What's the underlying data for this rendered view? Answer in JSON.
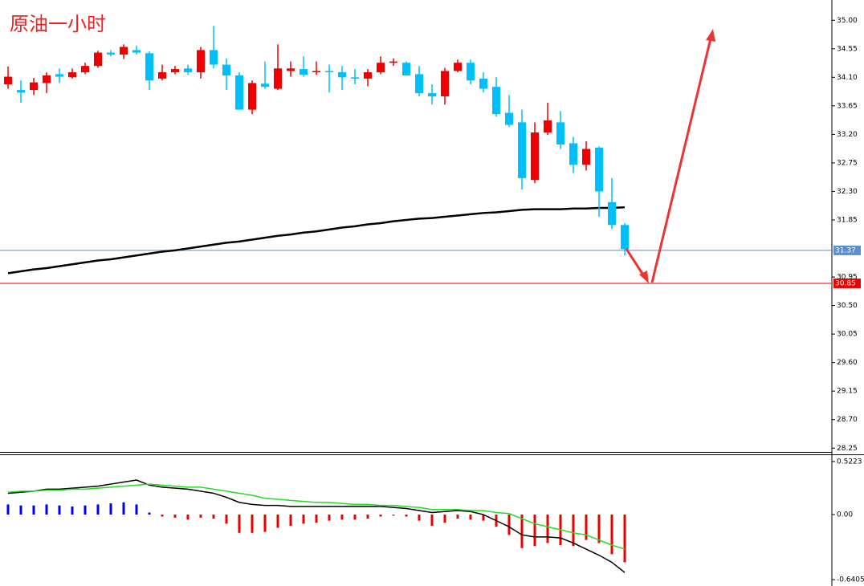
{
  "chart_data": [
    {
      "type": "candlestick",
      "title": "原油一小时",
      "open": [
        33.99,
        33.9,
        33.9,
        34.01,
        34.15,
        34.1,
        34.18,
        34.28,
        34.49,
        34.46,
        34.53,
        34.48,
        34.08,
        34.18,
        34.24,
        34.18,
        34.53,
        34.3,
        34.13,
        33.59,
        34.0,
        33.92,
        34.2,
        34.23,
        34.18,
        34.2,
        34.18,
        34.1,
        34.08,
        34.18,
        34.33,
        34.33,
        34.15,
        33.85,
        33.8,
        34.2,
        34.33,
        34.08,
        33.95,
        33.54,
        33.39,
        32.48,
        33.23,
        33.39,
        33.06,
        32.72,
        32.99,
        32.13,
        31.77
      ],
      "high": [
        34.27,
        34.05,
        34.09,
        34.18,
        34.24,
        34.24,
        34.33,
        34.52,
        34.53,
        34.62,
        34.6,
        34.51,
        34.3,
        34.28,
        34.3,
        34.58,
        34.91,
        34.4,
        34.18,
        34.05,
        34.35,
        34.62,
        34.35,
        34.43,
        34.35,
        34.3,
        34.28,
        34.23,
        34.23,
        34.43,
        34.4,
        34.35,
        34.28,
        33.99,
        34.25,
        34.38,
        34.38,
        34.18,
        34.1,
        33.82,
        33.59,
        33.39,
        33.7,
        33.57,
        33.16,
        33.09,
        33.01,
        32.51,
        31.8
      ],
      "low": [
        33.92,
        33.7,
        33.82,
        33.85,
        34.01,
        34.08,
        34.15,
        34.25,
        34.43,
        34.39,
        34.46,
        33.9,
        34.05,
        34.15,
        34.14,
        34.08,
        34.24,
        33.9,
        33.59,
        33.52,
        33.92,
        33.9,
        34.11,
        34.11,
        34.14,
        33.86,
        33.9,
        33.99,
        33.96,
        34.15,
        34.28,
        34.13,
        33.8,
        33.67,
        33.67,
        34.18,
        33.99,
        33.86,
        33.48,
        33.32,
        32.33,
        32.43,
        33.19,
        32.97,
        32.59,
        32.63,
        31.9,
        31.71,
        31.29
      ],
      "close": [
        34.11,
        33.86,
        34.02,
        34.13,
        34.11,
        34.18,
        34.28,
        34.49,
        34.46,
        34.58,
        34.49,
        34.05,
        34.18,
        34.23,
        34.18,
        34.53,
        34.3,
        34.13,
        33.59,
        34.01,
        33.95,
        34.24,
        34.24,
        34.14,
        34.2,
        34.18,
        34.1,
        34.08,
        34.18,
        34.33,
        34.35,
        34.13,
        33.85,
        33.8,
        34.2,
        34.33,
        34.05,
        33.92,
        33.52,
        33.35,
        32.51,
        33.23,
        33.42,
        33.04,
        32.72,
        32.97,
        32.3,
        31.77,
        31.39
      ],
      "up_color": "#ee0000",
      "down_color": "#00bfff",
      "overlays": [
        {
          "color": "#000000",
          "values": [
            31.01,
            31.04,
            31.07,
            31.09,
            31.12,
            31.15,
            31.18,
            31.21,
            31.23,
            31.26,
            31.29,
            31.32,
            31.35,
            31.37,
            31.4,
            31.43,
            31.46,
            31.49,
            31.51,
            31.54,
            31.57,
            31.6,
            31.62,
            31.65,
            31.67,
            31.7,
            31.73,
            31.75,
            31.78,
            31.8,
            31.83,
            31.85,
            31.87,
            31.88,
            31.9,
            31.92,
            31.94,
            31.96,
            31.97,
            31.99,
            32.01,
            32.02,
            32.02,
            32.02,
            32.03,
            32.03,
            32.04,
            32.04,
            32.05
          ]
        }
      ],
      "hlines": [
        {
          "value": 31.37,
          "color": "#5b8fd0"
        },
        {
          "value": 30.85,
          "color": "#ee0000"
        }
      ],
      "ylim": [
        28.19,
        35.32
      ],
      "yticks": [
        {
          "value": 35,
          "label": "35.00"
        },
        34.55,
        {
          "value": 34.1,
          "label": "34.10"
        },
        33.65,
        {
          "value": 33.2,
          "label": "33.20"
        },
        32.75,
        {
          "value": 32.3,
          "label": "32.30"
        },
        31.85,
        30.95,
        {
          "value": 30.5,
          "label": "30.50"
        },
        30.05,
        {
          "value": 29.6,
          "label": "29.60"
        },
        29.15,
        {
          "value": 28.7,
          "label": "28.70"
        },
        28.25
      ]
    },
    {
      "type": "macd",
      "histogram": [
        0.1,
        0.09,
        0.09,
        0.1,
        0.09,
        0.08,
        0.09,
        0.1,
        0.11,
        0.12,
        0.1,
        0.02,
        -0.02,
        -0.03,
        -0.05,
        -0.03,
        -0.04,
        -0.09,
        -0.18,
        -0.18,
        -0.17,
        -0.13,
        -0.11,
        -0.09,
        -0.08,
        -0.06,
        -0.05,
        -0.05,
        -0.04,
        -0.02,
        -0.01,
        -0.02,
        -0.06,
        -0.11,
        -0.08,
        -0.04,
        -0.05,
        -0.06,
        -0.12,
        -0.2,
        -0.33,
        -0.31,
        -0.28,
        -0.3,
        -0.31,
        -0.25,
        -0.28,
        -0.39,
        -0.47
      ],
      "pos_color": "#0000ee",
      "neg_color": "#ee0000",
      "series": [
        {
          "color": "#000000",
          "values": [
            0.21,
            0.22,
            0.23,
            0.25,
            0.25,
            0.26,
            0.27,
            0.28,
            0.3,
            0.32,
            0.34,
            0.29,
            0.27,
            0.26,
            0.25,
            0.23,
            0.21,
            0.17,
            0.12,
            0.1,
            0.09,
            0.09,
            0.08,
            0.08,
            0.08,
            0.08,
            0.08,
            0.08,
            0.08,
            0.08,
            0.07,
            0.06,
            0.04,
            0.02,
            0.03,
            0.04,
            0.03,
            0.0,
            -0.06,
            -0.12,
            -0.2,
            -0.22,
            -0.22,
            -0.23,
            -0.28,
            -0.34,
            -0.4,
            -0.47,
            -0.57
          ]
        },
        {
          "color": "#22dd22",
          "values": [
            0.22,
            0.23,
            0.23,
            0.24,
            0.24,
            0.25,
            0.25,
            0.26,
            0.27,
            0.28,
            0.29,
            0.3,
            0.29,
            0.28,
            0.27,
            0.27,
            0.25,
            0.23,
            0.21,
            0.19,
            0.16,
            0.15,
            0.14,
            0.13,
            0.12,
            0.12,
            0.11,
            0.1,
            0.1,
            0.09,
            0.09,
            0.08,
            0.07,
            0.05,
            0.05,
            0.05,
            0.04,
            0.04,
            0.02,
            0.01,
            -0.04,
            -0.09,
            -0.12,
            -0.15,
            -0.18,
            -0.2,
            -0.25,
            -0.3,
            -0.34
          ]
        }
      ],
      "ylim": [
        -0.703,
        0.585
      ],
      "yticks": [
        0.5223,
        {
          "value": 0,
          "label": "0.00"
        },
        -0.6405
      ]
    }
  ]
}
